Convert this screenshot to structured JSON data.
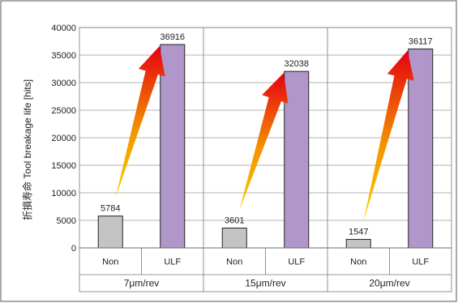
{
  "chart_data": {
    "type": "bar",
    "ylabel": "折損寿命 Tool breakage life [hits]",
    "ylim": [
      0,
      40000
    ],
    "yticks": [
      0,
      5000,
      10000,
      15000,
      20000,
      25000,
      30000,
      35000,
      40000
    ],
    "grid": true,
    "groups": [
      "7μm/rev",
      "15μm/rev",
      "20μm/rev"
    ],
    "categories": [
      "Non",
      "ULF",
      "Non",
      "ULF",
      "Non",
      "ULF"
    ],
    "values": [
      5784,
      36916,
      3601,
      32038,
      1547,
      36117
    ],
    "data_labels": [
      "5784",
      "36916",
      "3601",
      "32038",
      "1547",
      "36117"
    ],
    "bar_colors": {
      "Non": "#c4c4c4",
      "ULF": "#b197c9"
    },
    "arrows": [
      {
        "from": 0,
        "to": 1
      },
      {
        "from": 2,
        "to": 3
      },
      {
        "from": 4,
        "to": 5
      }
    ]
  }
}
